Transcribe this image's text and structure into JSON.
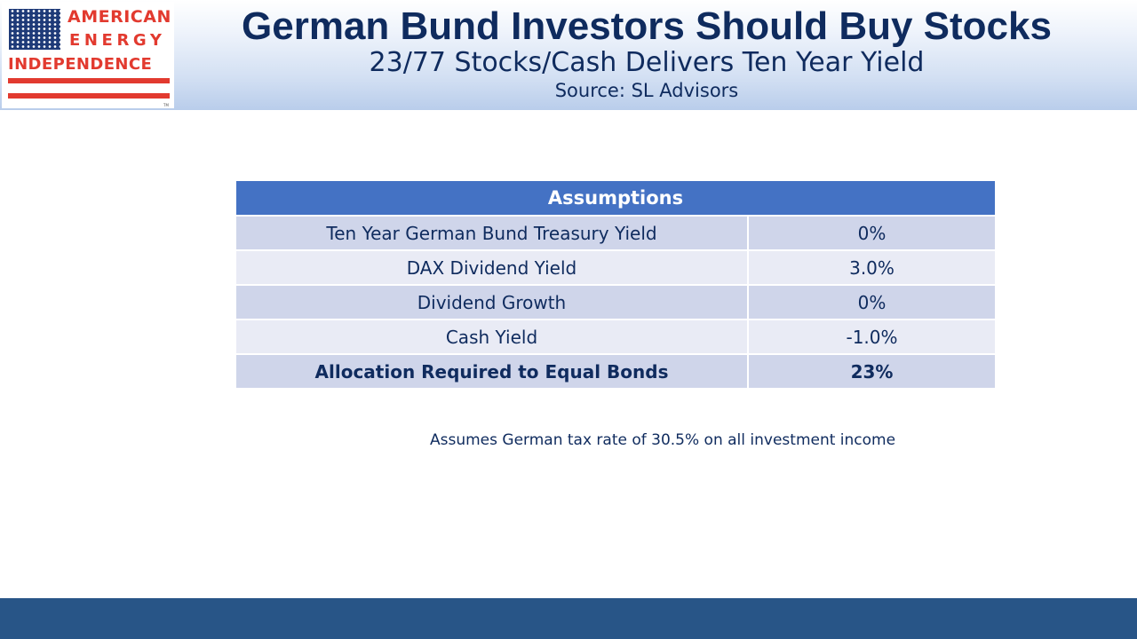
{
  "logo": {
    "line1": "AMERICAN",
    "line2": "ENERGY",
    "line3": "INDEPENDENCE",
    "trademark": "TM"
  },
  "header": {
    "title": "German Bund Investors Should Buy Stocks",
    "subtitle": "23/77 Stocks/Cash Delivers Ten Year Yield",
    "source": "Source: SL Advisors"
  },
  "table": {
    "header": "Assumptions",
    "rows": [
      {
        "label": "Ten Year German Bund Treasury Yield",
        "value": "0%"
      },
      {
        "label": "DAX Dividend Yield",
        "value": "3.0%"
      },
      {
        "label": "Dividend Growth",
        "value": "0%"
      },
      {
        "label": "Cash Yield",
        "value": "-1.0%"
      },
      {
        "label": "Allocation Required to Equal Bonds",
        "value": "23%"
      }
    ]
  },
  "footnote": "Assumes German tax rate of 30.5% on all investment income",
  "colors": {
    "title_navy": "#0f2b5e",
    "table_header_blue": "#4472c4",
    "row_dark": "#cfd5ea",
    "row_light": "#e9ebf5",
    "footer_bar": "#285587",
    "logo_red": "#e23a2f",
    "flag_blue": "#1e3a78"
  }
}
